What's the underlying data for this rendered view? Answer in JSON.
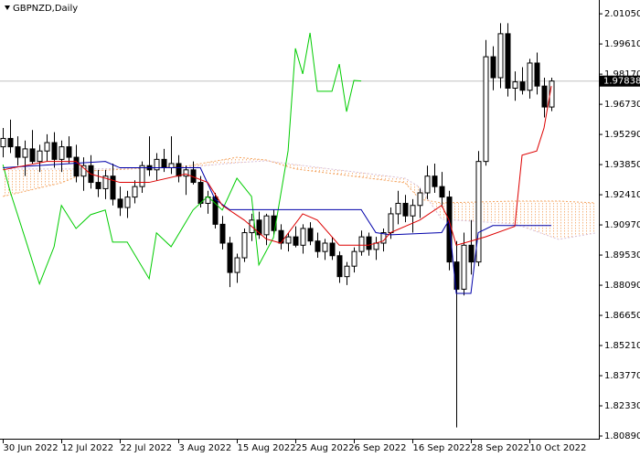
{
  "chart_data": {
    "type": "candlestick",
    "title": "GBPNZD,Daily",
    "ylim": [
      1.8076,
      2.0171
    ],
    "yticks": [
      {
        "value": 2.0105,
        "label": "2.01050"
      },
      {
        "value": 1.9961,
        "label": "1.99610"
      },
      {
        "value": 1.9817,
        "label": "1.98170"
      },
      {
        "value": 1.9673,
        "label": "1.96730"
      },
      {
        "value": 1.9529,
        "label": "1.95290"
      },
      {
        "value": 1.9385,
        "label": "1.93850"
      },
      {
        "value": 1.9241,
        "label": "1.92410"
      },
      {
        "value": 1.9097,
        "label": "1.90970"
      },
      {
        "value": 1.8953,
        "label": "1.89530"
      },
      {
        "value": 1.8809,
        "label": "1.88090"
      },
      {
        "value": 1.8665,
        "label": "1.86650"
      },
      {
        "value": 1.8521,
        "label": "1.85210"
      },
      {
        "value": 1.8377,
        "label": "1.83770"
      },
      {
        "value": 1.8233,
        "label": "1.82330"
      },
      {
        "value": 1.8089,
        "label": "1.80890"
      }
    ],
    "xlim": [
      -0.4,
      81.5
    ],
    "xticks": [
      {
        "value": 0,
        "label": "30 Jun 2022"
      },
      {
        "value": 8,
        "label": "12 Jul 2022"
      },
      {
        "value": 16,
        "label": "22 Jul 2022"
      },
      {
        "value": 24,
        "label": "3 Aug 2022"
      },
      {
        "value": 32,
        "label": "15 Aug 2022"
      },
      {
        "value": 40,
        "label": "25 Aug 2022"
      },
      {
        "value": 48,
        "label": "6 Sep 2022"
      },
      {
        "value": 56,
        "label": "16 Sep 2022"
      },
      {
        "value": 64,
        "label": "28 Sep 2022"
      },
      {
        "value": 72,
        "label": "10 Oct 2022"
      }
    ],
    "current_price": {
      "value": 1.97838,
      "label": "1.97838"
    },
    "candles": [
      [
        1.947,
        1.956,
        1.942,
        1.951
      ],
      [
        1.951,
        1.96,
        1.944,
        1.947
      ],
      [
        1.947,
        1.952,
        1.938,
        1.942
      ],
      [
        1.942,
        1.95,
        1.933,
        1.946
      ],
      [
        1.946,
        1.955,
        1.939,
        1.94
      ],
      [
        1.94,
        1.948,
        1.935,
        1.945
      ],
      [
        1.945,
        1.953,
        1.94,
        1.949
      ],
      [
        1.949,
        1.954,
        1.937,
        1.941
      ],
      [
        1.941,
        1.95,
        1.935,
        1.947
      ],
      [
        1.947,
        1.952,
        1.939,
        1.942
      ],
      [
        1.942,
        1.948,
        1.93,
        1.933
      ],
      [
        1.933,
        1.942,
        1.926,
        1.938
      ],
      [
        1.938,
        1.943,
        1.927,
        1.93
      ],
      [
        1.93,
        1.936,
        1.923,
        1.927
      ],
      [
        1.927,
        1.936,
        1.922,
        1.933
      ],
      [
        1.933,
        1.939,
        1.919,
        1.922
      ],
      [
        1.922,
        1.928,
        1.914,
        1.918
      ],
      [
        1.918,
        1.926,
        1.913,
        1.923
      ],
      [
        1.923,
        1.931,
        1.92,
        1.928
      ],
      [
        1.928,
        1.94,
        1.925,
        1.938
      ],
      [
        1.938,
        1.952,
        1.933,
        1.936
      ],
      [
        1.936,
        1.944,
        1.931,
        1.941
      ],
      [
        1.941,
        1.946,
        1.935,
        1.937
      ],
      [
        1.937,
        1.952,
        1.934,
        1.939
      ],
      [
        1.939,
        1.943,
        1.93,
        1.933
      ],
      [
        1.933,
        1.938,
        1.924,
        1.936
      ],
      [
        1.936,
        1.94,
        1.929,
        1.93
      ],
      [
        1.93,
        1.933,
        1.918,
        1.92
      ],
      [
        1.92,
        1.926,
        1.915,
        1.923
      ],
      [
        1.923,
        1.925,
        1.908,
        1.91
      ],
      [
        1.91,
        1.914,
        1.898,
        1.901
      ],
      [
        1.901,
        1.904,
        1.88,
        1.887
      ],
      [
        1.887,
        1.896,
        1.882,
        1.894
      ],
      [
        1.894,
        1.908,
        1.892,
        1.906
      ],
      [
        1.906,
        1.915,
        1.902,
        1.912
      ],
      [
        1.912,
        1.916,
        1.903,
        1.905
      ],
      [
        1.905,
        1.915,
        1.9,
        1.914
      ],
      [
        1.914,
        1.917,
        1.905,
        1.907
      ],
      [
        1.907,
        1.91,
        1.898,
        1.901
      ],
      [
        1.901,
        1.906,
        1.897,
        1.904
      ],
      [
        1.904,
        1.909,
        1.899,
        1.9
      ],
      [
        1.9,
        1.91,
        1.896,
        1.908
      ],
      [
        1.908,
        1.911,
        1.9,
        1.902
      ],
      [
        1.902,
        1.906,
        1.894,
        1.897
      ],
      [
        1.897,
        1.903,
        1.893,
        1.901
      ],
      [
        1.901,
        1.904,
        1.893,
        1.895
      ],
      [
        1.895,
        1.897,
        1.882,
        1.885
      ],
      [
        1.885,
        1.892,
        1.881,
        1.89
      ],
      [
        1.89,
        1.899,
        1.887,
        1.897
      ],
      [
        1.897,
        1.907,
        1.895,
        1.904
      ],
      [
        1.904,
        1.906,
        1.895,
        1.898
      ],
      [
        1.898,
        1.904,
        1.893,
        1.901
      ],
      [
        1.901,
        1.908,
        1.897,
        1.906
      ],
      [
        1.906,
        1.918,
        1.903,
        1.915
      ],
      [
        1.915,
        1.926,
        1.91,
        1.92
      ],
      [
        1.92,
        1.924,
        1.911,
        1.914
      ],
      [
        1.914,
        1.922,
        1.906,
        1.919
      ],
      [
        1.919,
        1.927,
        1.913,
        1.925
      ],
      [
        1.925,
        1.938,
        1.922,
        1.933
      ],
      [
        1.933,
        1.939,
        1.925,
        1.928
      ],
      [
        1.928,
        1.935,
        1.918,
        1.923
      ],
      [
        1.923,
        1.926,
        1.888,
        1.892
      ],
      [
        1.892,
        1.902,
        1.813,
        1.879
      ],
      [
        1.879,
        1.906,
        1.876,
        1.9
      ],
      [
        1.9,
        1.912,
        1.886,
        1.892
      ],
      [
        1.892,
        1.945,
        1.89,
        1.94
      ],
      [
        1.94,
        1.998,
        1.938,
        1.99
      ],
      [
        1.99,
        1.995,
        1.974,
        1.98
      ],
      [
        1.98,
        2.006,
        1.975,
        2.001
      ],
      [
        2.001,
        2.006,
        1.971,
        1.975
      ],
      [
        1.975,
        1.983,
        1.969,
        1.978
      ],
      [
        1.978,
        1.985,
        1.972,
        1.974
      ],
      [
        1.974,
        1.989,
        1.97,
        1.987
      ],
      [
        1.987,
        1.992,
        1.972,
        1.976
      ],
      [
        1.976,
        1.98,
        1.961,
        1.966
      ],
      [
        1.966,
        1.98,
        1.964,
        1.9784
      ]
    ],
    "cloud": {
      "x": [
        0,
        8,
        12,
        25,
        32,
        36,
        40,
        55,
        57,
        60,
        70,
        76,
        81
      ],
      "span_a": {
        "color": "#f4a460",
        "values": [
          1.9233,
          1.9298,
          1.9355,
          1.9377,
          1.942,
          1.9407,
          1.9364,
          1.9298,
          1.922,
          1.9202,
          1.9211,
          1.9211,
          1.9202
        ]
      },
      "span_b": {
        "color": "#d8bfd8",
        "values": [
          1.9364,
          1.9364,
          1.9364,
          1.9372,
          1.9394,
          1.9403,
          1.9385,
          1.932,
          1.9277,
          1.9124,
          1.9102,
          1.9028,
          1.9058
        ]
      }
    },
    "lines": [
      {
        "color": "#00cc00",
        "x": [
          0,
          1,
          3,
          5,
          7,
          8,
          10,
          12,
          14,
          15,
          17,
          20,
          21,
          23,
          26,
          28,
          30,
          32,
          34,
          35,
          37,
          39,
          40,
          41,
          42,
          43,
          45,
          46,
          47,
          48,
          49
        ],
        "values": [
          1.9385,
          1.9255,
          1.9037,
          1.8815,
          1.8993,
          1.919,
          1.908,
          1.9146,
          1.9168,
          1.9015,
          1.9015,
          1.884,
          1.9059,
          1.8993,
          1.9168,
          1.9233,
          1.9168,
          1.932,
          1.9233,
          1.8906,
          1.9037,
          1.9451,
          1.994,
          1.9818,
          2.0014,
          1.9735,
          1.9735,
          1.9865,
          1.9638,
          1.9787,
          1.9784
        ]
      },
      {
        "color": "#0000aa",
        "x": [
          0,
          14,
          16,
          27,
          29,
          31,
          49,
          51,
          53,
          60,
          61,
          62,
          64,
          65,
          67,
          75
        ],
        "values": [
          1.937,
          1.94,
          1.937,
          1.937,
          1.922,
          1.917,
          1.917,
          1.906,
          1.905,
          1.906,
          1.912,
          1.877,
          1.877,
          1.906,
          1.9094,
          1.9094
        ]
      },
      {
        "color": "#dd0000",
        "x": [
          0,
          6,
          10,
          12,
          16,
          20,
          25,
          28,
          30,
          33,
          36,
          38,
          41,
          43,
          46,
          50,
          52,
          53,
          57,
          60,
          61,
          62,
          64,
          66,
          70,
          71,
          73,
          74,
          75
        ],
        "values": [
          1.936,
          1.94,
          1.94,
          1.934,
          1.93,
          1.93,
          1.934,
          1.93,
          1.919,
          1.912,
          1.903,
          1.901,
          1.915,
          1.912,
          1.9,
          1.9,
          1.902,
          1.906,
          1.912,
          1.919,
          1.912,
          1.9,
          1.902,
          1.904,
          1.909,
          1.943,
          1.945,
          1.956,
          1.976
        ]
      }
    ]
  }
}
